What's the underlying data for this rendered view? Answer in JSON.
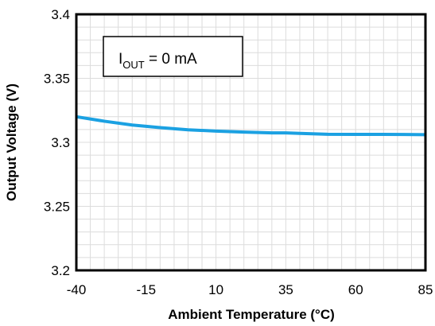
{
  "chart_data": {
    "type": "line",
    "title": "",
    "xlabel": "Ambient Temperature (°C)",
    "ylabel": "Output Voltage (V)",
    "xlim": [
      -40,
      85
    ],
    "ylim": [
      3.2,
      3.4
    ],
    "xticks": [
      -40,
      -15,
      10,
      35,
      60,
      85
    ],
    "yticks": [
      3.2,
      3.25,
      3.3,
      3.35,
      3.4
    ],
    "xtick_labels": [
      "-40",
      "-15",
      "10",
      "35",
      "60",
      "85"
    ],
    "ytick_labels": [
      "3.2",
      "3.25",
      "3.3",
      "3.35",
      "3.4"
    ],
    "grid": true,
    "annotation": {
      "main": "I",
      "sub": "OUT",
      "rest": " = 0 mA"
    },
    "series": [
      {
        "color": "#1ba1e2",
        "x": [
          -40,
          -30,
          -20,
          -10,
          0,
          10,
          20,
          30,
          35,
          40,
          50,
          60,
          70,
          85
        ],
        "y": [
          3.32,
          3.3165,
          3.3135,
          3.3115,
          3.3098,
          3.3088,
          3.308,
          3.3074,
          3.3074,
          3.307,
          3.3063,
          3.3062,
          3.3062,
          3.306
        ]
      }
    ]
  }
}
